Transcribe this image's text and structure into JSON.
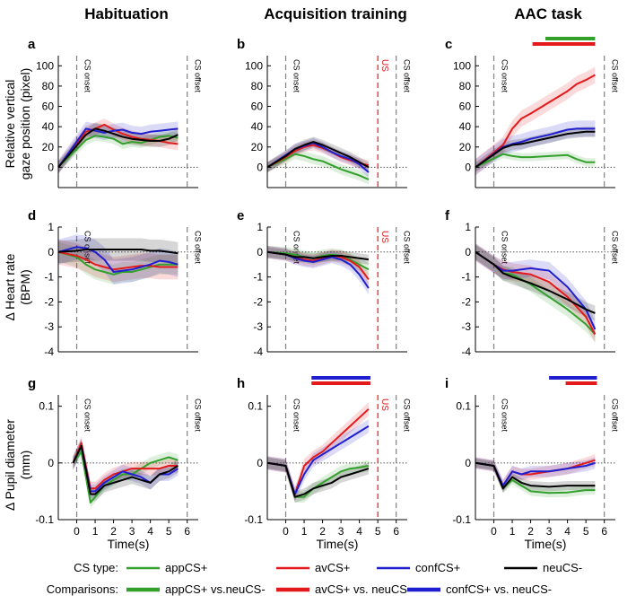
{
  "figure": {
    "columns": [
      "Habituation",
      "Acquisition training",
      "AAC task"
    ],
    "row_ylabels": [
      [
        "Relative vertical",
        "gaze position (pixel)"
      ],
      [
        "Δ Heart rate",
        "(BPM)"
      ],
      [
        "Δ Pupil diameter",
        "(mm)"
      ]
    ],
    "xlabel": "Time(s)",
    "cs_onset_label": "CS onset",
    "cs_offset_label": "CS offset",
    "us_label": "US"
  },
  "colors": {
    "appCS+": "#33a02c",
    "avCS+": "#e31a1c",
    "confCS+": "#1f1fd0",
    "neuCS-": "#000000",
    "vline": "#808080",
    "us": "#e31a1c"
  },
  "legend": {
    "cs_type_title": "CS type:",
    "cs_types": [
      {
        "key": "appCS+",
        "label": "appCS+"
      },
      {
        "key": "avCS+",
        "label": "avCS+"
      },
      {
        "key": "confCS+",
        "label": "confCS+"
      },
      {
        "key": "neuCS-",
        "label": "neuCS-"
      }
    ],
    "comparisons_title": "Comparisons:",
    "comparisons": [
      {
        "key": "appCS+",
        "label": "appCS+ vs.neuCS-"
      },
      {
        "key": "avCS+",
        "label": "avCS+ vs. neuCS-"
      },
      {
        "key": "confCS+",
        "label": "confCS+ vs. neuCS-"
      }
    ]
  },
  "chart_data": [
    {
      "type": "line",
      "panel": "a",
      "row": 0,
      "col": 0,
      "title": "Habituation",
      "xlim": [
        -1,
        6.6
      ],
      "ylim": [
        -20,
        110
      ],
      "yticks": [
        0,
        20,
        40,
        60,
        80,
        100
      ],
      "cs_onset": 0,
      "cs_offset": 6,
      "us": null,
      "sig_bars": [],
      "x": [
        -1,
        0.5,
        1,
        1.5,
        2,
        2.5,
        3,
        3.5,
        4,
        4.5,
        5,
        5.5
      ],
      "series": [
        {
          "name": "appCS+",
          "values": [
            0,
            27,
            31,
            30,
            28,
            23,
            25,
            24,
            27,
            30,
            31,
            29
          ],
          "err": 5
        },
        {
          "name": "avCS+",
          "values": [
            0,
            35,
            38,
            42,
            37,
            33,
            30,
            28,
            27,
            26,
            24,
            23
          ],
          "err": 6
        },
        {
          "name": "confCS+",
          "values": [
            0,
            38,
            36,
            34,
            36,
            37,
            34,
            33,
            35,
            36,
            37,
            38
          ],
          "err": 7
        },
        {
          "name": "neuCS-",
          "values": [
            0,
            32,
            38,
            36,
            33,
            30,
            28,
            27,
            26,
            26,
            28,
            32
          ],
          "err": 6
        }
      ]
    },
    {
      "type": "line",
      "panel": "b",
      "row": 0,
      "col": 1,
      "title": "Acquisition training",
      "xlim": [
        -1,
        6.6
      ],
      "ylim": [
        -20,
        110
      ],
      "yticks": [
        0,
        20,
        40,
        60,
        80,
        100
      ],
      "cs_onset": 0,
      "cs_offset": 6,
      "us": 5,
      "sig_bars": [],
      "x": [
        -1,
        0,
        0.5,
        1,
        1.5,
        2,
        2.5,
        3,
        3.5,
        4,
        4.5
      ],
      "series": [
        {
          "name": "appCS+",
          "values": [
            0,
            8,
            13,
            11,
            8,
            6,
            2,
            -2,
            -5,
            -8,
            -12
          ],
          "err": 5
        },
        {
          "name": "avCS+",
          "values": [
            0,
            10,
            16,
            20,
            22,
            19,
            15,
            10,
            7,
            4,
            2
          ],
          "err": 5
        },
        {
          "name": "confCS+",
          "values": [
            0,
            12,
            18,
            21,
            24,
            20,
            15,
            11,
            8,
            3,
            -5
          ],
          "err": 5
        },
        {
          "name": "neuCS-",
          "values": [
            0,
            11,
            18,
            22,
            25,
            22,
            18,
            14,
            10,
            5,
            0
          ],
          "err": 5
        }
      ]
    },
    {
      "type": "line",
      "panel": "c",
      "row": 0,
      "col": 2,
      "title": "AAC task",
      "xlim": [
        -1,
        6.6
      ],
      "ylim": [
        -20,
        110
      ],
      "yticks": [
        0,
        20,
        40,
        60,
        80,
        100
      ],
      "cs_onset": 0,
      "cs_offset": 6,
      "us": null,
      "sig_bars": [
        {
          "series": "appCS+",
          "x": [
            2.8,
            5.5
          ]
        },
        {
          "series": "avCS+",
          "x": [
            2.1,
            5.5
          ]
        }
      ],
      "x": [
        -1,
        0.5,
        1,
        1.5,
        2,
        3,
        4,
        4.5,
        5,
        5.5
      ],
      "series": [
        {
          "name": "appCS+",
          "values": [
            0,
            13,
            11,
            10,
            10,
            11,
            12,
            8,
            5,
            5
          ],
          "err": 4
        },
        {
          "name": "avCS+",
          "values": [
            0,
            22,
            38,
            48,
            53,
            64,
            75,
            82,
            86,
            91
          ],
          "err": 8
        },
        {
          "name": "confCS+",
          "values": [
            0,
            20,
            23,
            25,
            28,
            32,
            37,
            38,
            38,
            38
          ],
          "err": 8
        },
        {
          "name": "neuCS-",
          "values": [
            0,
            19,
            22,
            23,
            25,
            29,
            33,
            34,
            35,
            35
          ],
          "err": 5
        }
      ]
    },
    {
      "type": "line",
      "panel": "d",
      "row": 1,
      "col": 0,
      "xlim": [
        -1,
        6.6
      ],
      "ylim": [
        -4,
        1
      ],
      "yticks": [
        -4,
        -3,
        -2,
        -1,
        0,
        1
      ],
      "cs_onset": 0,
      "cs_offset": 6,
      "us": null,
      "sig_bars": [],
      "x": [
        -1,
        0,
        0.5,
        1,
        1.5,
        2,
        2.5,
        3,
        3.5,
        4,
        4.5,
        5,
        5.5
      ],
      "series": [
        {
          "name": "appCS+",
          "values": [
            0,
            -0.2,
            -0.5,
            -0.7,
            -0.8,
            -0.9,
            -0.8,
            -0.8,
            -0.7,
            -0.6,
            -0.5,
            -0.5,
            -0.5
          ],
          "err": 0.4
        },
        {
          "name": "avCS+",
          "values": [
            0,
            -0.15,
            -0.3,
            -0.5,
            -0.6,
            -0.7,
            -0.65,
            -0.6,
            -0.55,
            -0.55,
            -0.6,
            -0.6,
            -0.6
          ],
          "err": 0.5
        },
        {
          "name": "confCS+",
          "values": [
            0,
            0.2,
            0.15,
            0,
            -0.3,
            -0.8,
            -0.75,
            -0.7,
            -0.6,
            -0.5,
            -0.35,
            -0.4,
            -0.5
          ],
          "err": 0.5
        },
        {
          "name": "neuCS-",
          "values": [
            0,
            0.05,
            0.1,
            0.1,
            0.1,
            0.1,
            0.1,
            0.1,
            0.1,
            0.05,
            0.05,
            0,
            -0.05
          ],
          "err": 0.45
        }
      ]
    },
    {
      "type": "line",
      "panel": "e",
      "row": 1,
      "col": 1,
      "xlim": [
        -1,
        6.6
      ],
      "ylim": [
        -4,
        1
      ],
      "yticks": [
        -4,
        -3,
        -2,
        -1,
        0,
        1
      ],
      "cs_onset": 0,
      "cs_offset": 6,
      "us": 5,
      "sig_bars": [],
      "x": [
        -1,
        0,
        0.5,
        1,
        1.5,
        2,
        2.5,
        3,
        3.5,
        4,
        4.5
      ],
      "series": [
        {
          "name": "appCS+",
          "values": [
            0,
            -0.05,
            -0.1,
            -0.2,
            -0.25,
            -0.15,
            -0.1,
            -0.15,
            -0.3,
            -0.5,
            -0.7
          ],
          "err": 0.25
        },
        {
          "name": "avCS+",
          "values": [
            0,
            -0.1,
            -0.2,
            -0.3,
            -0.35,
            -0.25,
            -0.15,
            -0.2,
            -0.35,
            -0.6,
            -1.1
          ],
          "err": 0.25
        },
        {
          "name": "confCS+",
          "values": [
            0,
            -0.1,
            -0.25,
            -0.35,
            -0.4,
            -0.3,
            -0.2,
            -0.3,
            -0.5,
            -0.9,
            -1.45
          ],
          "err": 0.25
        },
        {
          "name": "neuCS-",
          "values": [
            0,
            -0.1,
            -0.2,
            -0.2,
            -0.25,
            -0.2,
            -0.15,
            -0.15,
            -0.2,
            -0.25,
            -0.3
          ],
          "err": 0.2
        }
      ]
    },
    {
      "type": "line",
      "panel": "f",
      "row": 1,
      "col": 2,
      "xlim": [
        -1,
        6.6
      ],
      "ylim": [
        -4,
        1
      ],
      "yticks": [
        -4,
        -3,
        -2,
        -1,
        0,
        1
      ],
      "cs_onset": 0,
      "cs_offset": 6,
      "us": null,
      "sig_bars": [],
      "x": [
        -1,
        0,
        0.5,
        1,
        2,
        3,
        4,
        5,
        5.5
      ],
      "series": [
        {
          "name": "appCS+",
          "values": [
            0,
            -0.5,
            -0.85,
            -0.9,
            -1.3,
            -1.8,
            -2.3,
            -2.9,
            -3.3
          ],
          "err": 0.3
        },
        {
          "name": "avCS+",
          "values": [
            0,
            -0.5,
            -0.7,
            -0.8,
            -0.9,
            -1.2,
            -1.8,
            -2.6,
            -3.3
          ],
          "err": 0.35
        },
        {
          "name": "confCS+",
          "values": [
            0,
            -0.5,
            -0.75,
            -0.75,
            -0.65,
            -0.75,
            -1.4,
            -2.3,
            -3.1
          ],
          "err": 0.35
        },
        {
          "name": "neuCS-",
          "values": [
            0,
            -0.5,
            -0.85,
            -1.0,
            -1.25,
            -1.55,
            -1.9,
            -2.3,
            -2.45
          ],
          "err": 0.3
        }
      ]
    },
    {
      "type": "line",
      "panel": "g",
      "row": 2,
      "col": 0,
      "xlabel": "Time(s)",
      "xlim": [
        -1,
        6.6
      ],
      "ylim": [
        -0.1,
        0.12
      ],
      "yticks": [
        -0.1,
        0,
        0.1
      ],
      "xticks": [
        0,
        1,
        2,
        3,
        4,
        5,
        6
      ],
      "cs_onset": 0,
      "cs_offset": 6,
      "us": null,
      "sig_bars": [],
      "x": [
        -0.2,
        0.25,
        0.75,
        1,
        1.5,
        2,
        2.5,
        3,
        3.5,
        4,
        4.5,
        5,
        5.5
      ],
      "series": [
        {
          "name": "appCS+",
          "values": [
            0,
            0.02,
            -0.07,
            -0.06,
            -0.04,
            -0.03,
            -0.02,
            -0.02,
            -0.01,
            0,
            0.005,
            0.01,
            0.005
          ],
          "err": 0.01
        },
        {
          "name": "avCS+",
          "values": [
            0,
            0.035,
            -0.045,
            -0.045,
            -0.03,
            -0.02,
            -0.015,
            -0.01,
            -0.01,
            -0.01,
            -0.01,
            -0.005,
            -0.005
          ],
          "err": 0.012
        },
        {
          "name": "confCS+",
          "values": [
            0,
            0.03,
            -0.05,
            -0.05,
            -0.035,
            -0.025,
            -0.015,
            -0.02,
            -0.025,
            -0.035,
            -0.02,
            -0.02,
            -0.01
          ],
          "err": 0.012
        },
        {
          "name": "neuCS-",
          "values": [
            0,
            0.03,
            -0.055,
            -0.055,
            -0.04,
            -0.035,
            -0.03,
            -0.025,
            -0.03,
            -0.035,
            -0.02,
            -0.015,
            -0.005
          ],
          "err": 0.012
        }
      ]
    },
    {
      "type": "line",
      "panel": "h",
      "row": 2,
      "col": 1,
      "xlabel": "Time(s)",
      "xlim": [
        -1,
        6.6
      ],
      "ylim": [
        -0.1,
        0.12
      ],
      "yticks": [
        -0.1,
        0,
        0.1
      ],
      "xticks": [
        0,
        1,
        2,
        3,
        4,
        5,
        6
      ],
      "cs_onset": 0,
      "cs_offset": 6,
      "us": 5,
      "sig_bars": [
        {
          "series": "confCS+",
          "x": [
            1.4,
            4.6
          ]
        },
        {
          "series": "avCS+",
          "x": [
            1.4,
            4.6
          ]
        }
      ],
      "x": [
        -1,
        0,
        0.5,
        1,
        1.5,
        2,
        2.5,
        3,
        3.5,
        4,
        4.5
      ],
      "series": [
        {
          "name": "appCS+",
          "values": [
            0,
            -0.005,
            -0.06,
            -0.06,
            -0.045,
            -0.035,
            -0.025,
            -0.015,
            -0.01,
            -0.008,
            -0.005
          ],
          "err": 0.01
        },
        {
          "name": "avCS+",
          "values": [
            0,
            -0.005,
            -0.055,
            -0.005,
            0.01,
            0.02,
            0.035,
            0.05,
            0.065,
            0.08,
            0.095
          ],
          "err": 0.012
        },
        {
          "name": "confCS+",
          "values": [
            0,
            -0.005,
            -0.055,
            -0.02,
            0.005,
            0.015,
            0.025,
            0.035,
            0.045,
            0.055,
            0.065
          ],
          "err": 0.012
        },
        {
          "name": "neuCS-",
          "values": [
            0,
            -0.005,
            -0.06,
            -0.055,
            -0.045,
            -0.04,
            -0.035,
            -0.025,
            -0.02,
            -0.015,
            -0.01
          ],
          "err": 0.01
        }
      ]
    },
    {
      "type": "line",
      "panel": "i",
      "row": 2,
      "col": 2,
      "xlabel": "Time(s)",
      "xlim": [
        -1,
        6.6
      ],
      "ylim": [
        -0.1,
        0.12
      ],
      "yticks": [
        -0.1,
        0,
        0.1
      ],
      "xticks": [
        0,
        1,
        2,
        3,
        4,
        5,
        6
      ],
      "cs_onset": 0,
      "cs_offset": 6,
      "us": null,
      "sig_bars": [
        {
          "series": "confCS+",
          "x": [
            3.0,
            5.6
          ]
        },
        {
          "series": "avCS+",
          "x": [
            3.9,
            5.6
          ]
        }
      ],
      "x": [
        -1,
        0,
        0.5,
        1,
        1.5,
        2,
        3,
        4,
        5,
        5.5
      ],
      "series": [
        {
          "name": "appCS+",
          "values": [
            0,
            -0.005,
            -0.045,
            -0.03,
            -0.04,
            -0.05,
            -0.053,
            -0.052,
            -0.048,
            -0.048
          ],
          "err": 0.008
        },
        {
          "name": "avCS+",
          "values": [
            0,
            -0.005,
            -0.04,
            -0.015,
            -0.02,
            -0.02,
            -0.015,
            -0.01,
            0,
            0.005
          ],
          "err": 0.01
        },
        {
          "name": "confCS+",
          "values": [
            0,
            -0.005,
            -0.04,
            -0.015,
            -0.02,
            -0.015,
            -0.015,
            -0.01,
            -0.005,
            0
          ],
          "err": 0.01
        },
        {
          "name": "neuCS-",
          "values": [
            0,
            -0.005,
            -0.045,
            -0.025,
            -0.035,
            -0.04,
            -0.042,
            -0.04,
            -0.04,
            -0.04
          ],
          "err": 0.008
        }
      ]
    }
  ]
}
